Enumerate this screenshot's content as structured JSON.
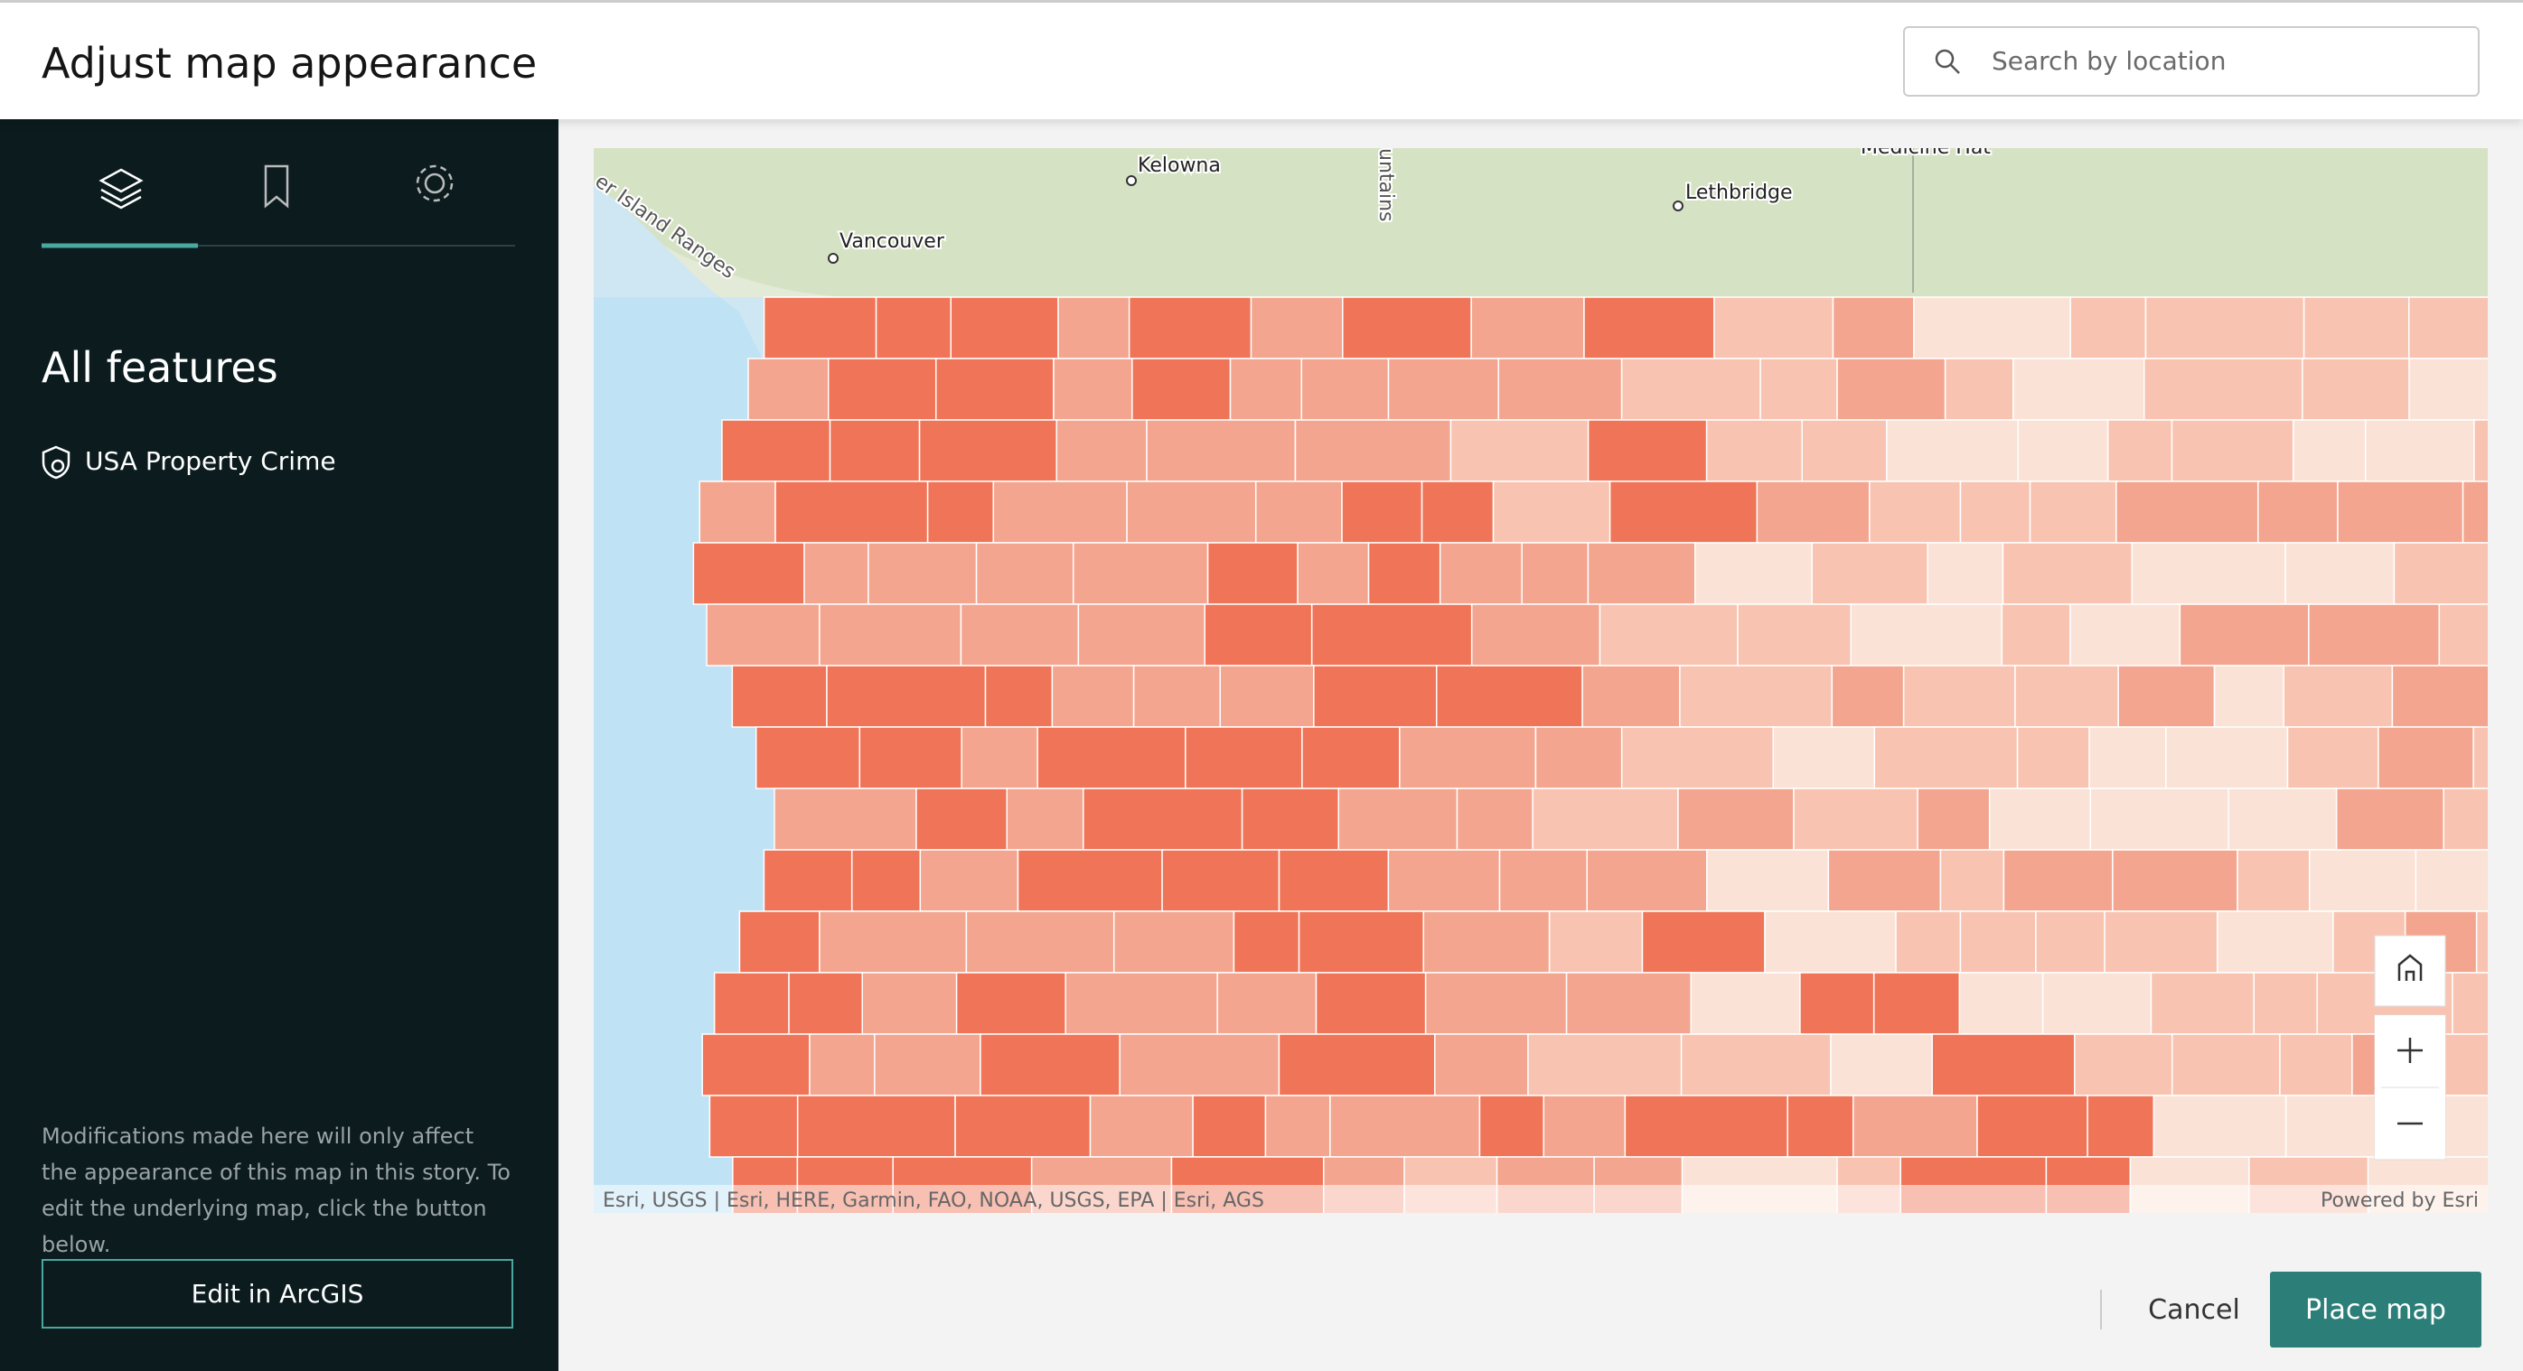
{
  "header": {
    "title": "Adjust map appearance",
    "search_placeholder": "Search by location"
  },
  "sidebar": {
    "section_title": "All features",
    "layers": [
      "USA Property Crime"
    ],
    "note": "Modifications made here will only affect the appearance of this map in this story. To edit the underlying map, click the button below.",
    "edit_button": "Edit in ArcGIS"
  },
  "map": {
    "labels": [
      "Kelowna",
      "Vancouver",
      "Lethbridge",
      "Medicine Hat",
      "er Island Ranges",
      "untains"
    ],
    "attribution": "Esri, USGS | Esri, HERE, Garmin, FAO, NOAA, USGS, EPA | Esri, AGS",
    "powered_by": "Powered by Esri"
  },
  "footer": {
    "cancel": "Cancel",
    "place_map": "Place map"
  }
}
